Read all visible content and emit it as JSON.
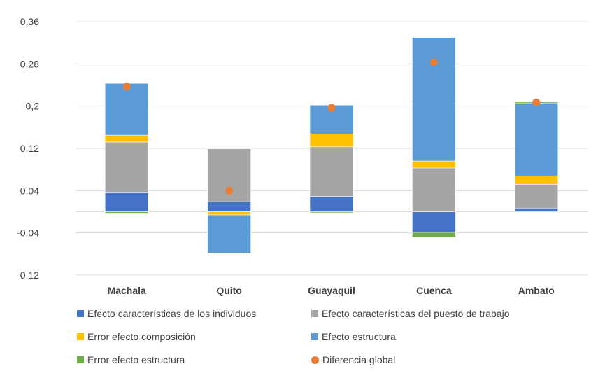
{
  "chart_data": {
    "type": "bar",
    "stacked": true,
    "categories": [
      "Machala",
      "Quito",
      "Guayaquil",
      "Cuenca",
      "Ambato"
    ],
    "yticks": [
      "0,36",
      "0,28",
      "0,2",
      "0,12",
      "0,04",
      "-0,04",
      "-0,12"
    ],
    "ylim": [
      -0.12,
      0.36
    ],
    "grid": true,
    "legend_position": "bottom",
    "series": [
      {
        "name": "Efecto características de los individuos",
        "color": "#4472C4",
        "values": [
          0.036,
          0.019,
          0.029,
          -0.039,
          0.007
        ]
      },
      {
        "name": "Efecto características del puesto de trabajo",
        "color": "#A5A5A5",
        "values": [
          0.096,
          0.1,
          0.094,
          0.083,
          0.045
        ]
      },
      {
        "name": "Error efecto composición",
        "color": "#FFC000",
        "values": [
          0.013,
          -0.006,
          0.024,
          0.013,
          0.016
        ]
      },
      {
        "name": "Efecto estructura",
        "color": "#5B9BD5",
        "values": [
          0.098,
          -0.072,
          0.055,
          0.234,
          0.138
        ]
      },
      {
        "name": "Error efecto estructura",
        "color": "#70AD47",
        "values": [
          -0.004,
          -0.001,
          -0.002,
          -0.009,
          0.002
        ]
      }
    ],
    "points": {
      "name": "Diferencia global",
      "color": "#ED7D31",
      "values": [
        0.237,
        0.04,
        0.197,
        0.283,
        0.207
      ]
    }
  }
}
